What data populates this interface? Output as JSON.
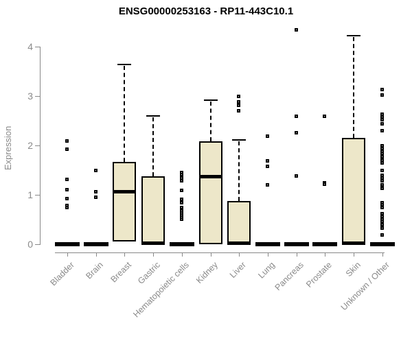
{
  "chart_data": {
    "type": "boxplot",
    "title": "ENSG00000253163 - RP11-443C10.1",
    "ylabel": "Expression",
    "xlabel": "",
    "yticks": [
      0,
      1,
      2,
      3,
      4
    ],
    "ylim": [
      0,
      4.4
    ],
    "grid": false,
    "legend": "none",
    "colors": {
      "box_fill": "#EDE7C9",
      "box_border": "#000000",
      "median": "#000000",
      "axis": "#888888",
      "tick_label": "#8a8a8a",
      "title": "#000000"
    },
    "categories": [
      "Bladder",
      "Brain",
      "Breast",
      "Gastric",
      "Hematopoietic cells",
      "Kidney",
      "Liver",
      "Lung",
      "Pancreas",
      "Prostate",
      "Skin",
      "Unknown / Other"
    ],
    "boxes": [
      {
        "category": "Bladder",
        "q1": 0,
        "median": 0,
        "q3": 0,
        "whisker_low": 0,
        "whisker_high": 0,
        "outliers": [
          2.08,
          1.92,
          1.3,
          1.1,
          0.91,
          0.78,
          0.73
        ]
      },
      {
        "category": "Brain",
        "q1": 0,
        "median": 0,
        "q3": 0,
        "whisker_low": 0,
        "whisker_high": 0,
        "outliers": [
          1.48,
          1.06,
          0.95
        ]
      },
      {
        "category": "Breast",
        "q1": 0.05,
        "median": 1.07,
        "q3": 1.67,
        "whisker_low": 0,
        "whisker_high": 3.64,
        "outliers": []
      },
      {
        "category": "Gastric",
        "q1": 0,
        "median": 0.03,
        "q3": 1.37,
        "whisker_low": 0,
        "whisker_high": 2.6,
        "outliers": []
      },
      {
        "category": "Hematopoietic cells",
        "q1": 0,
        "median": 0,
        "q3": 0,
        "whisker_low": 0,
        "whisker_high": 0,
        "outliers": [
          1.45,
          1.4,
          1.34,
          1.28,
          1.09,
          0.9,
          0.83,
          0.74,
          0.7,
          0.66,
          0.62,
          0.58,
          0.54,
          0.5
        ]
      },
      {
        "category": "Kidney",
        "q1": 0,
        "median": 1.38,
        "q3": 2.08,
        "whisker_low": 0,
        "whisker_high": 2.91,
        "outliers": []
      },
      {
        "category": "Liver",
        "q1": 0,
        "median": 0.03,
        "q3": 0.87,
        "whisker_low": 0,
        "whisker_high": 2.11,
        "outliers": [
          2.98,
          2.88,
          2.8,
          2.7
        ]
      },
      {
        "category": "Lung",
        "q1": 0,
        "median": 0,
        "q3": 0,
        "whisker_low": 0,
        "whisker_high": 0,
        "outliers": [
          2.18,
          1.68,
          1.57,
          1.2
        ]
      },
      {
        "category": "Pancreas",
        "q1": 0,
        "median": 0,
        "q3": 0,
        "whisker_low": 0,
        "whisker_high": 0,
        "outliers": [
          4.34,
          2.59,
          2.25,
          1.37
        ]
      },
      {
        "category": "Prostate",
        "q1": 0,
        "median": 0,
        "q3": 0,
        "whisker_low": 0,
        "whisker_high": 0,
        "outliers": [
          2.59,
          1.24,
          1.21
        ]
      },
      {
        "category": "Skin",
        "q1": 0,
        "median": 0.03,
        "q3": 2.15,
        "whisker_low": 0,
        "whisker_high": 4.22,
        "outliers": []
      },
      {
        "category": "Unknown / Other",
        "q1": 0,
        "median": 0,
        "q3": 0,
        "whisker_low": 0,
        "whisker_high": 0,
        "outliers": [
          3.12,
          3.01,
          2.62,
          2.57,
          2.52,
          2.43,
          2.29,
          1.98,
          1.93,
          1.88,
          1.83,
          1.77,
          1.7,
          1.64,
          1.49,
          1.39,
          1.33,
          1.28,
          1.19,
          1.13,
          0.84,
          0.79,
          0.74,
          0.61,
          0.55,
          0.5,
          0.46,
          0.39,
          0.32,
          0.18
        ]
      }
    ]
  }
}
